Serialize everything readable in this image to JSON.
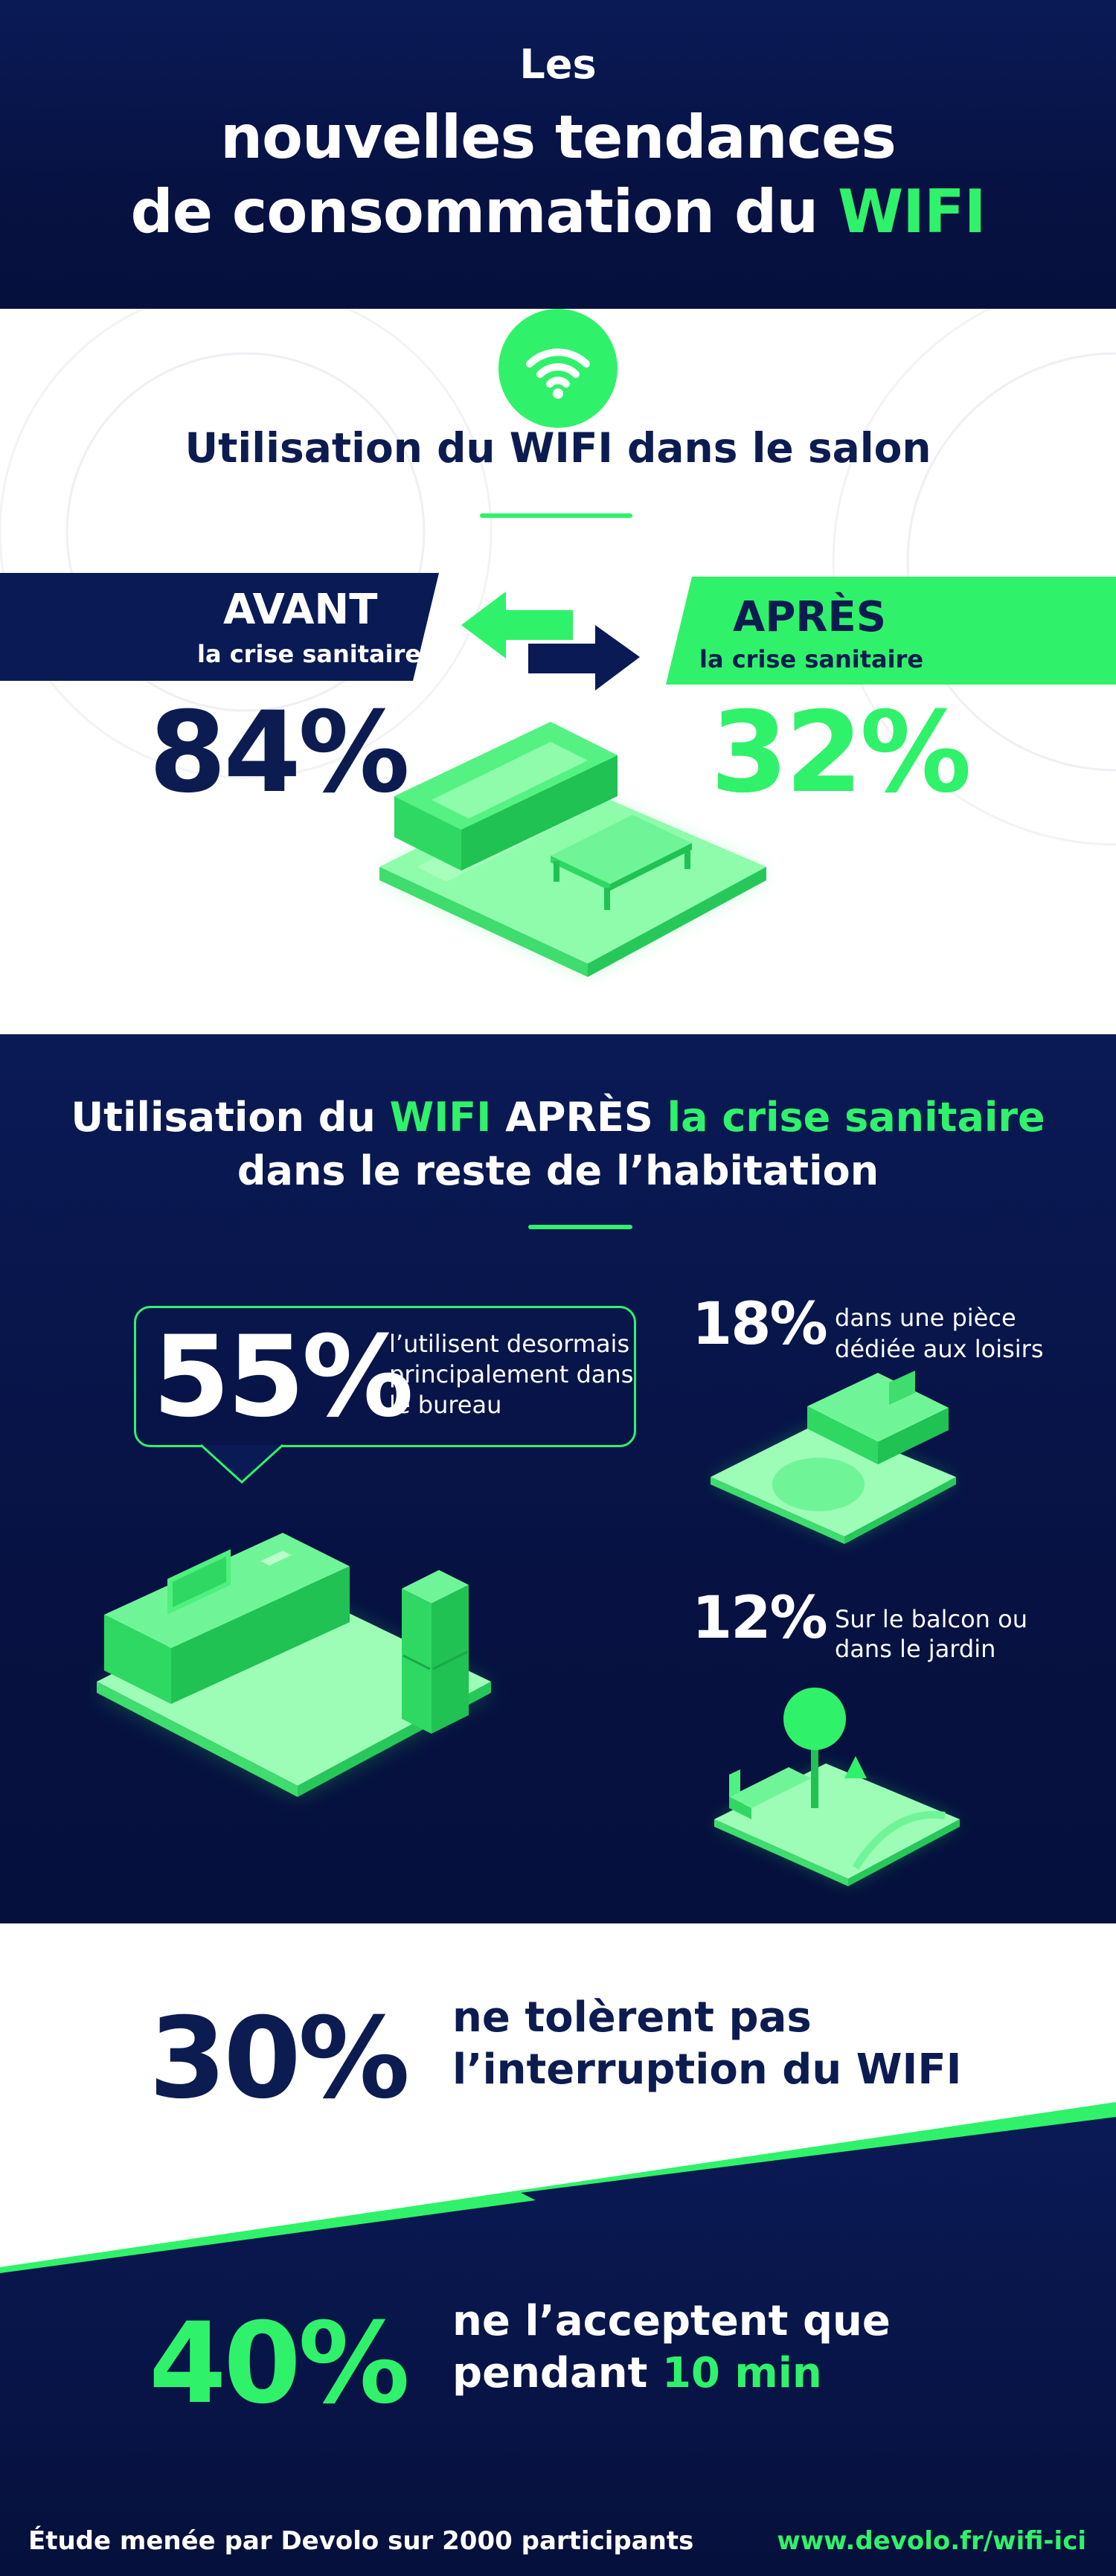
{
  "header": {
    "line1": "Les",
    "line2": "nouvelles tendances",
    "line3_part1": "de consommation du ",
    "line3_part2": "WIFI"
  },
  "salon": {
    "icon": "wifi-icon",
    "title": "Utilisation du WIFI dans le salon",
    "avant_label": "AVANT",
    "avant_sub": "la crise sanitaire",
    "apres_label": "APRÈS",
    "apres_sub": "la crise sanitaire",
    "avant_pct": "84%",
    "apres_pct": "32%"
  },
  "reste": {
    "title_p1": "Utilisation du ",
    "title_p2": "WIFI",
    "title_p3": " APRÈS ",
    "title_p4": "la crise sanitaire",
    "title_line2": "dans le reste de l’habitation",
    "bureau_pct": "55%",
    "bureau_txt": "l’utilisent desormais principalement dans le bureau",
    "loisirs_pct": "18%",
    "loisirs_txt1": "dans une pièce",
    "loisirs_txt2": "dédiée aux loisirs",
    "balcon_pct": "12%",
    "balcon_txt1": "Sur le balcon ou",
    "balcon_txt2": "dans le jardin"
  },
  "bottom": {
    "pct30": "30%",
    "txt30_l1": "ne tolèrent pas",
    "txt30_l2": "l’interruption du WIFI",
    "pct40": "40%",
    "txt40_l1": "ne l’acceptent que",
    "txt40_l2a": "pendant ",
    "txt40_l2b": "10 min",
    "footer_left": "Étude menée par Devolo sur 2000 participants",
    "footer_right": "www.devolo.fr/wifi-ici"
  },
  "colors": {
    "navy": "#0a1a55",
    "green": "#2ff26a",
    "light_green": "#7dfc9c"
  },
  "chart_data": {
    "type": "bar",
    "categories": [
      "AVANT la crise sanitaire",
      "APRÈS la crise sanitaire"
    ],
    "values": [
      84,
      32
    ],
    "title": "Utilisation du WIFI dans le salon",
    "units": "%",
    "other_stats": [
      {
        "label": "l’utilisent desormais principalement dans le bureau",
        "value": 55
      },
      {
        "label": "dans une pièce dédiée aux loisirs",
        "value": 18
      },
      {
        "label": "Sur le balcon ou dans le jardin",
        "value": 12
      },
      {
        "label": "ne tolèrent pas l’interruption du WIFI",
        "value": 30
      },
      {
        "label": "ne l’acceptent que pendant 10 min",
        "value": 40
      }
    ]
  }
}
